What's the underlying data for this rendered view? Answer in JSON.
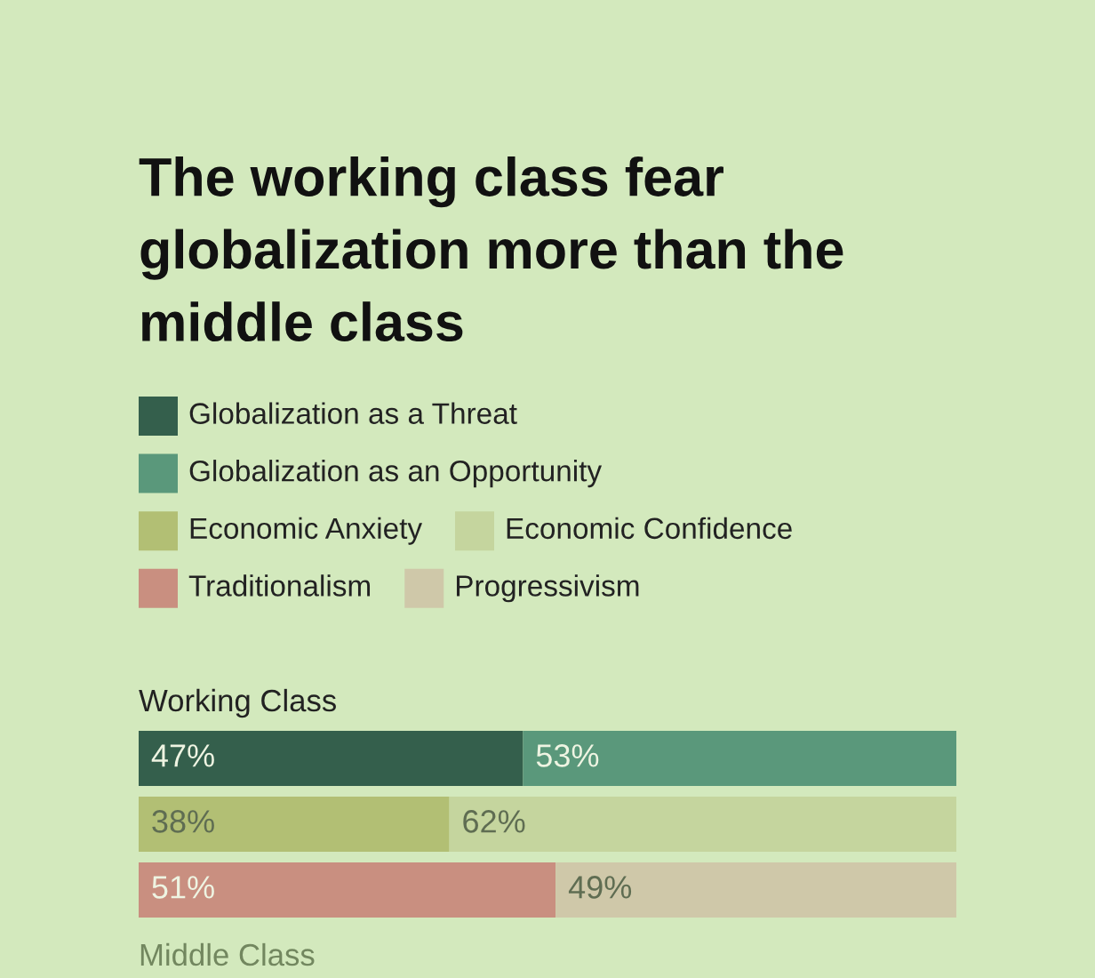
{
  "chart_data": {
    "type": "bar",
    "orientation": "horizontal",
    "stacked": true,
    "title": "The working class fear globalization more than the middle class",
    "categories": [
      null,
      null,
      null
    ],
    "series": [
      {
        "name": "Globalization as a Threat",
        "color": "#345f4c",
        "values": [
          47,
          null,
          null
        ],
        "value_labels": [
          "47%",
          null,
          null
        ]
      },
      {
        "name": "Globalization as an Opportunity",
        "color": "#5a987b",
        "values": [
          53,
          null,
          null
        ],
        "value_labels": [
          "53%",
          null,
          null
        ]
      },
      {
        "name": "Economic Anxiety",
        "color": "#b2bf74",
        "values": [
          null,
          38,
          null
        ],
        "value_labels": [
          null,
          "38%",
          null
        ]
      },
      {
        "name": "Economic Confidence",
        "color": "#c5d59e",
        "values": [
          null,
          62,
          null
        ],
        "value_labels": [
          null,
          "62%",
          null
        ]
      },
      {
        "name": "Traditionalism",
        "color": "#c98f80",
        "values": [
          null,
          null,
          51
        ],
        "value_labels": [
          null,
          null,
          "51%"
        ]
      },
      {
        "name": "Progressivism",
        "color": "#cfc8a9",
        "values": [
          null,
          null,
          49
        ],
        "value_labels": [
          null,
          null,
          "49%"
        ]
      }
    ],
    "xlim": [
      0,
      100
    ],
    "tick_labels": false,
    "legend": "top left",
    "grid": false,
    "annotations": [
      "Working Class",
      "Middle Class"
    ]
  }
}
